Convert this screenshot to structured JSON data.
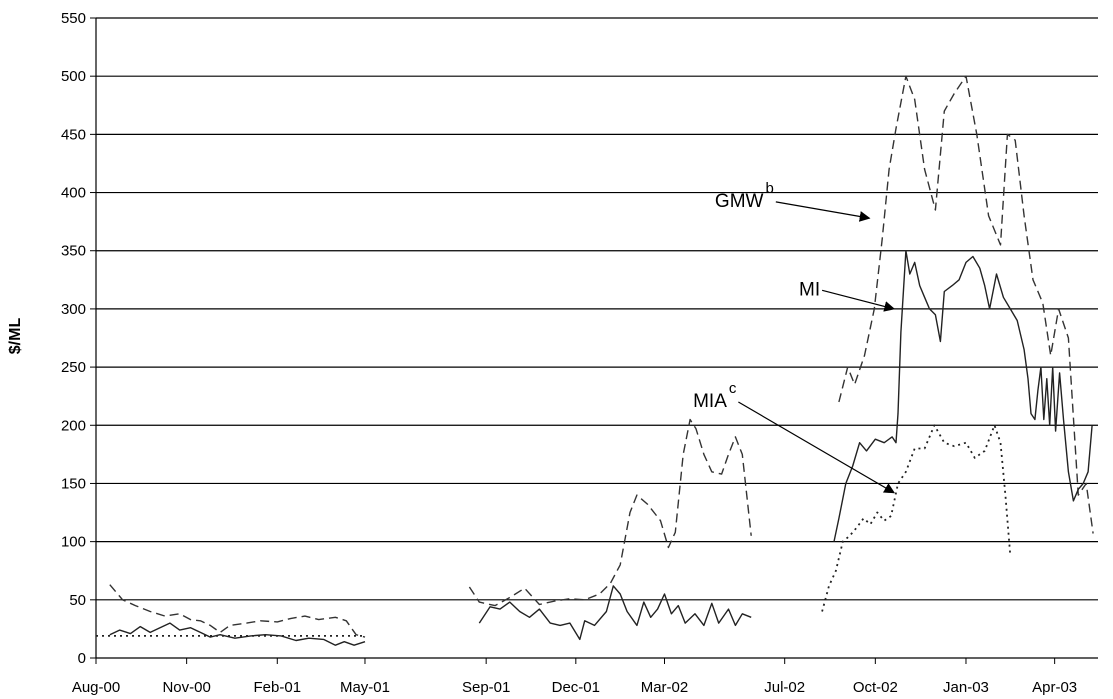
{
  "chart_data": {
    "type": "line",
    "ylabel": "$/ML",
    "ylim": [
      0,
      550
    ],
    "yticks": [
      0,
      50,
      100,
      150,
      200,
      250,
      300,
      350,
      400,
      450,
      500,
      550
    ],
    "xlim": [
      "2000-08-01",
      "2003-05-15"
    ],
    "xticks": [
      {
        "date": "2000-08-01",
        "label": "Aug-00"
      },
      {
        "date": "2000-11-01",
        "label": "Nov-00"
      },
      {
        "date": "2001-02-01",
        "label": "Feb-01"
      },
      {
        "date": "2001-05-01",
        "label": "May-01"
      },
      {
        "date": "2001-09-01",
        "label": "Sep-01"
      },
      {
        "date": "2001-12-01",
        "label": "Dec-01"
      },
      {
        "date": "2002-03-01",
        "label": "Mar-02"
      },
      {
        "date": "2002-07-01",
        "label": "Jul-02"
      },
      {
        "date": "2002-10-01",
        "label": "Oct-02"
      },
      {
        "date": "2003-01-01",
        "label": "Jan-03"
      },
      {
        "date": "2003-04-01",
        "label": "Apr-03"
      }
    ],
    "grid": "horizontal",
    "series": [
      {
        "name": "GMW",
        "style": "dashed",
        "color": "#333333",
        "segments": [
          [
            [
              "2000-08-15",
              63
            ],
            [
              "2000-08-28",
              50
            ],
            [
              "2000-09-10",
              45
            ],
            [
              "2000-09-25",
              40
            ],
            [
              "2000-10-10",
              36
            ],
            [
              "2000-10-25",
              38
            ],
            [
              "2000-11-05",
              33
            ],
            [
              "2000-11-15",
              32
            ],
            [
              "2000-11-25",
              28
            ],
            [
              "2000-12-05",
              22
            ],
            [
              "2000-12-15",
              28
            ],
            [
              "2001-01-01",
              30
            ],
            [
              "2001-01-15",
              32
            ],
            [
              "2001-02-01",
              31
            ],
            [
              "2001-02-15",
              34
            ],
            [
              "2001-03-01",
              36
            ],
            [
              "2001-03-15",
              33
            ],
            [
              "2001-04-01",
              35
            ],
            [
              "2001-04-12",
              32
            ],
            [
              "2001-04-22",
              20
            ],
            [
              "2001-05-01",
              18
            ]
          ],
          [
            [
              "2001-08-15",
              61
            ],
            [
              "2001-08-25",
              48
            ],
            [
              "2001-09-10",
              45
            ],
            [
              "2001-09-25",
              52
            ],
            [
              "2001-10-10",
              60
            ],
            [
              "2001-10-25",
              46
            ],
            [
              "2001-11-10",
              49
            ],
            [
              "2001-11-25",
              51
            ],
            [
              "2001-12-10",
              50
            ],
            [
              "2001-12-25",
              55
            ],
            [
              "2002-01-05",
              64
            ],
            [
              "2002-01-15",
              80
            ],
            [
              "2002-01-25",
              125
            ],
            [
              "2002-02-01",
              140
            ],
            [
              "2002-02-12",
              132
            ],
            [
              "2002-02-25",
              118
            ],
            [
              "2002-03-05",
              95
            ],
            [
              "2002-03-12",
              108
            ],
            [
              "2002-03-20",
              175
            ],
            [
              "2002-03-27",
              205
            ],
            [
              "2002-04-02",
              197
            ],
            [
              "2002-04-10",
              175
            ],
            [
              "2002-04-18",
              160
            ],
            [
              "2002-04-28",
              158
            ],
            [
              "2002-05-05",
              175
            ],
            [
              "2002-05-12",
              190
            ],
            [
              "2002-05-19",
              175
            ],
            [
              "2002-05-28",
              105
            ]
          ],
          [
            [
              "2002-08-25",
              220
            ],
            [
              "2002-09-03",
              250
            ],
            [
              "2002-09-10",
              235
            ],
            [
              "2002-09-20",
              260
            ],
            [
              "2002-09-30",
              300
            ],
            [
              "2002-10-08",
              360
            ],
            [
              "2002-10-15",
              420
            ],
            [
              "2002-10-22",
              455
            ],
            [
              "2002-11-01",
              500
            ],
            [
              "2002-11-10",
              480
            ],
            [
              "2002-11-20",
              420
            ],
            [
              "2002-12-01",
              385
            ],
            [
              "2002-12-10",
              470
            ],
            [
              "2002-12-20",
              485
            ],
            [
              "2003-01-01",
              500
            ],
            [
              "2003-01-12",
              450
            ],
            [
              "2003-01-24",
              380
            ],
            [
              "2003-02-05",
              355
            ],
            [
              "2003-02-12",
              450
            ],
            [
              "2003-02-20",
              445
            ],
            [
              "2003-03-01",
              380
            ],
            [
              "2003-03-10",
              325
            ],
            [
              "2003-03-20",
              305
            ],
            [
              "2003-03-28",
              260
            ],
            [
              "2003-04-05",
              300
            ],
            [
              "2003-04-15",
              275
            ],
            [
              "2003-04-25",
              140
            ],
            [
              "2003-05-03",
              150
            ],
            [
              "2003-05-10",
              107
            ]
          ]
        ]
      },
      {
        "name": "MI",
        "style": "solid",
        "color": "#222222",
        "segments": [
          [
            [
              "2000-08-15",
              20
            ],
            [
              "2000-08-25",
              24
            ],
            [
              "2000-09-05",
              21
            ],
            [
              "2000-09-15",
              27
            ],
            [
              "2000-09-25",
              22
            ],
            [
              "2000-10-05",
              26
            ],
            [
              "2000-10-15",
              30
            ],
            [
              "2000-10-25",
              24
            ],
            [
              "2000-11-05",
              26
            ],
            [
              "2000-11-15",
              22
            ],
            [
              "2000-11-25",
              18
            ],
            [
              "2000-12-05",
              20
            ],
            [
              "2000-12-20",
              17
            ],
            [
              "2001-01-05",
              19
            ],
            [
              "2001-01-20",
              20
            ],
            [
              "2001-02-05",
              19
            ],
            [
              "2001-02-20",
              15
            ],
            [
              "2001-03-05",
              17
            ],
            [
              "2001-03-20",
              16
            ],
            [
              "2001-04-01",
              11
            ],
            [
              "2001-04-10",
              14
            ],
            [
              "2001-04-20",
              11
            ],
            [
              "2001-05-01",
              14
            ]
          ],
          [
            [
              "2001-08-25",
              30
            ],
            [
              "2001-09-05",
              44
            ],
            [
              "2001-09-15",
              42
            ],
            [
              "2001-09-25",
              48
            ],
            [
              "2001-10-05",
              40
            ],
            [
              "2001-10-15",
              35
            ],
            [
              "2001-10-25",
              42
            ],
            [
              "2001-11-05",
              30
            ],
            [
              "2001-11-15",
              28
            ],
            [
              "2001-11-25",
              30
            ],
            [
              "2001-12-05",
              16
            ],
            [
              "2001-12-10",
              32
            ],
            [
              "2001-12-20",
              28
            ],
            [
              "2002-01-01",
              40
            ],
            [
              "2002-01-08",
              62
            ],
            [
              "2002-01-15",
              55
            ],
            [
              "2002-01-22",
              40
            ],
            [
              "2002-02-01",
              28
            ],
            [
              "2002-02-08",
              48
            ],
            [
              "2002-02-15",
              35
            ],
            [
              "2002-02-22",
              42
            ],
            [
              "2002-03-01",
              55
            ],
            [
              "2002-03-08",
              38
            ],
            [
              "2002-03-15",
              45
            ],
            [
              "2002-03-22",
              30
            ],
            [
              "2002-04-01",
              38
            ],
            [
              "2002-04-10",
              28
            ],
            [
              "2002-04-18",
              47
            ],
            [
              "2002-04-25",
              30
            ],
            [
              "2002-05-05",
              42
            ],
            [
              "2002-05-12",
              28
            ],
            [
              "2002-05-19",
              38
            ],
            [
              "2002-05-28",
              35
            ]
          ],
          [
            [
              "2002-08-20",
              100
            ],
            [
              "2002-08-25",
              120
            ],
            [
              "2002-09-01",
              150
            ],
            [
              "2002-09-08",
              165
            ],
            [
              "2002-09-15",
              185
            ],
            [
              "2002-09-22",
              178
            ],
            [
              "2002-10-01",
              188
            ],
            [
              "2002-10-10",
              185
            ],
            [
              "2002-10-18",
              190
            ],
            [
              "2002-10-22",
              185
            ],
            [
              "2002-10-24",
              210
            ],
            [
              "2002-10-27",
              280
            ],
            [
              "2002-11-01",
              350
            ],
            [
              "2002-11-05",
              330
            ],
            [
              "2002-11-10",
              340
            ],
            [
              "2002-11-15",
              320
            ],
            [
              "2002-11-20",
              310
            ],
            [
              "2002-11-25",
              300
            ],
            [
              "2002-12-01",
              295
            ],
            [
              "2002-12-06",
              272
            ],
            [
              "2002-12-10",
              315
            ],
            [
              "2002-12-18",
              320
            ],
            [
              "2002-12-25",
              325
            ],
            [
              "2003-01-01",
              340
            ],
            [
              "2003-01-08",
              345
            ],
            [
              "2003-01-15",
              335
            ],
            [
              "2003-01-20",
              320
            ],
            [
              "2003-01-25",
              300
            ],
            [
              "2003-02-01",
              330
            ],
            [
              "2003-02-08",
              310
            ],
            [
              "2003-02-15",
              300
            ],
            [
              "2003-02-22",
              290
            ],
            [
              "2003-03-01",
              265
            ],
            [
              "2003-03-05",
              240
            ],
            [
              "2003-03-08",
              210
            ],
            [
              "2003-03-12",
              205
            ],
            [
              "2003-03-15",
              230
            ],
            [
              "2003-03-18",
              250
            ],
            [
              "2003-03-21",
              205
            ],
            [
              "2003-03-24",
              240
            ],
            [
              "2003-03-27",
              200
            ],
            [
              "2003-03-30",
              250
            ],
            [
              "2003-04-02",
              195
            ],
            [
              "2003-04-06",
              245
            ],
            [
              "2003-04-10",
              205
            ],
            [
              "2003-04-15",
              160
            ],
            [
              "2003-04-20",
              135
            ],
            [
              "2003-04-25",
              145
            ],
            [
              "2003-04-30",
              150
            ],
            [
              "2003-05-05",
              160
            ],
            [
              "2003-05-09",
              200
            ]
          ]
        ]
      },
      {
        "name": "MIA",
        "style": "dotted",
        "color": "#222222",
        "segments": [
          [
            [
              "2000-08-01",
              19
            ],
            [
              "2001-05-01",
              19
            ]
          ],
          [
            [
              "2002-08-08",
              40
            ],
            [
              "2002-08-15",
              62
            ],
            [
              "2002-08-22",
              75
            ],
            [
              "2002-08-29",
              100
            ],
            [
              "2002-09-05",
              105
            ],
            [
              "2002-09-12",
              112
            ],
            [
              "2002-09-19",
              120
            ],
            [
              "2002-09-26",
              115
            ],
            [
              "2002-10-03",
              125
            ],
            [
              "2002-10-10",
              118
            ],
            [
              "2002-10-17",
              122
            ],
            [
              "2002-10-24",
              150
            ],
            [
              "2002-11-01",
              160
            ],
            [
              "2002-11-10",
              180
            ],
            [
              "2002-11-20",
              180
            ],
            [
              "2002-11-30",
              200
            ],
            [
              "2002-12-10",
              185
            ],
            [
              "2002-12-20",
              182
            ],
            [
              "2003-01-01",
              185
            ],
            [
              "2003-01-10",
              172
            ],
            [
              "2003-01-20",
              178
            ],
            [
              "2003-01-30",
              200
            ],
            [
              "2003-02-05",
              185
            ],
            [
              "2003-02-10",
              140
            ],
            [
              "2003-02-15",
              88
            ]
          ]
        ]
      }
    ],
    "annotations": [
      {
        "text": "GMW",
        "sup": "b",
        "date_from": "2002-06-22",
        "y_from": 392,
        "date_to": "2002-09-25",
        "y_to": 378
      },
      {
        "text": "MI",
        "sup": "",
        "date_from": "2002-08-08",
        "y_from": 316,
        "date_to": "2002-10-20",
        "y_to": 300
      },
      {
        "text": "MIA",
        "sup": "c",
        "date_from": "2002-05-15",
        "y_from": 220,
        "date_to": "2002-10-20",
        "y_to": 142
      }
    ]
  }
}
